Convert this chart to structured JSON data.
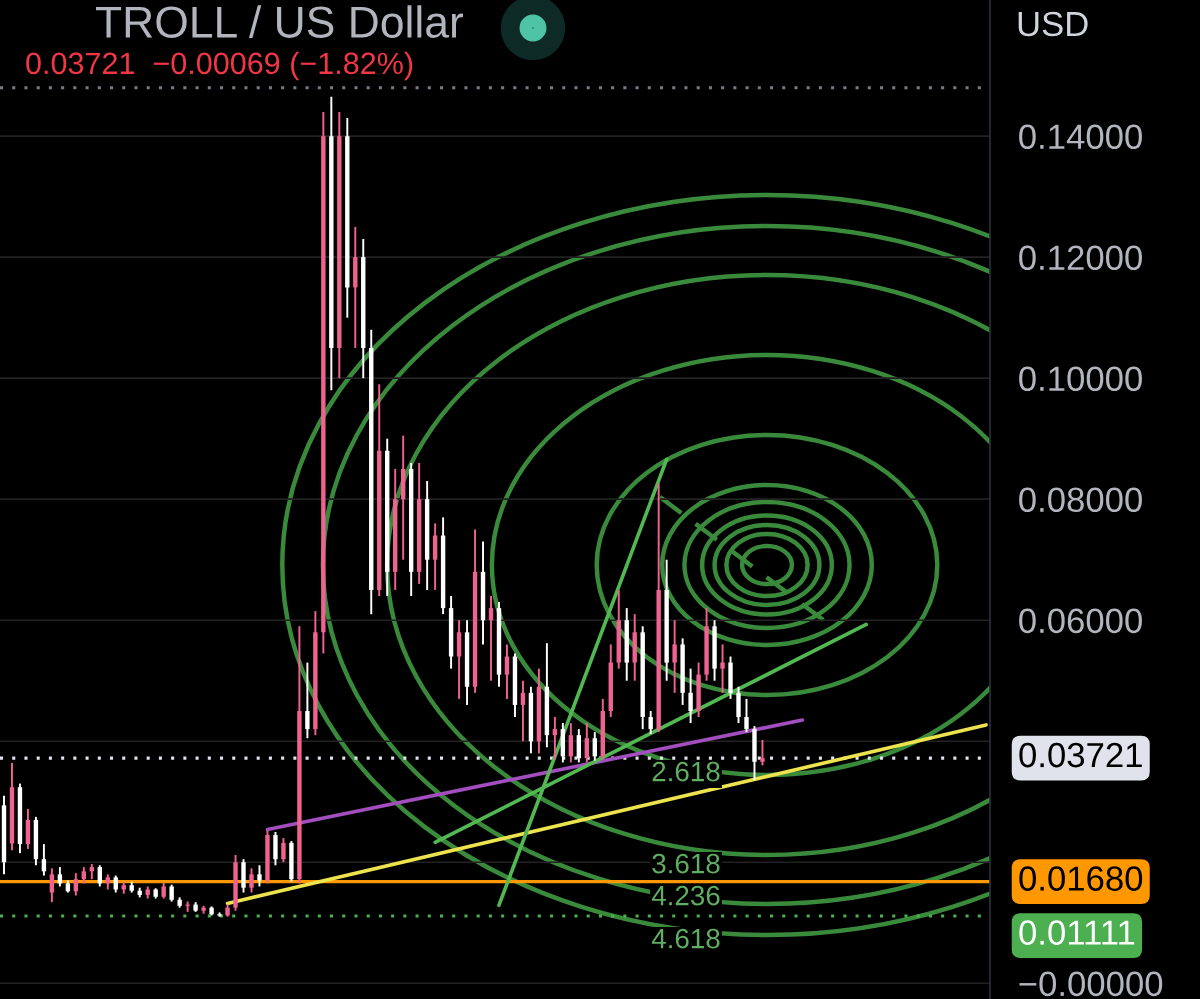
{
  "chart_data": {
    "type": "candlestick",
    "title": "TROLL / US Dollar",
    "subtitle": "0.03721  −0.00069 (−1.82%)",
    "annotations": [
      "USD",
      "2.618",
      "3.618",
      "4.236",
      "4.618"
    ],
    "categories": [
      null,
      null,
      null,
      null,
      null,
      null,
      null,
      null,
      null,
      null,
      null,
      null,
      null,
      null,
      null,
      null,
      null,
      null,
      null,
      null,
      null,
      null,
      null,
      null,
      null,
      null,
      null,
      null,
      null,
      null,
      null,
      null,
      null,
      null,
      null,
      null,
      null,
      null,
      null,
      null,
      null,
      null,
      null,
      null,
      null,
      null,
      null,
      null,
      null,
      null,
      null,
      null,
      null,
      null,
      null,
      null,
      null,
      null,
      null,
      null,
      null,
      null,
      null,
      null,
      null,
      null,
      null,
      null,
      null,
      null,
      null,
      null,
      null,
      null,
      null,
      null,
      null,
      null,
      null,
      null,
      null,
      null,
      null,
      null,
      null,
      null,
      null,
      null,
      null,
      null,
      null,
      null,
      null,
      null,
      null,
      null,
      null,
      null,
      null,
      null,
      null,
      null,
      null,
      null,
      null,
      null,
      null,
      null,
      null,
      null,
      null,
      null,
      null,
      null,
      null,
      null,
      null,
      null,
      null,
      null,
      null,
      null,
      null,
      null
    ],
    "ohlc": [
      [
        0.0294,
        0.031,
        0.018,
        0.02
      ],
      [
        0.0231,
        0.0364,
        0.022,
        0.0324
      ],
      [
        0.0324,
        0.033,
        0.0215,
        0.023
      ],
      [
        0.023,
        0.0288,
        0.0222,
        0.027
      ],
      [
        0.027,
        0.0275,
        0.0195,
        0.0205
      ],
      [
        0.0205,
        0.023,
        0.0178,
        0.0185
      ],
      [
        0.015,
        0.019,
        0.0134,
        0.018
      ],
      [
        0.018,
        0.0192,
        0.016,
        0.0165
      ],
      [
        0.0165,
        0.017,
        0.015,
        0.0152
      ],
      [
        0.0152,
        0.0182,
        0.0145,
        0.0172
      ],
      [
        0.0172,
        0.0192,
        0.0165,
        0.0185
      ],
      [
        0.0185,
        0.0197,
        0.0172,
        0.0192
      ],
      [
        0.0192,
        0.0195,
        0.016,
        0.0165
      ],
      [
        0.0165,
        0.018,
        0.0155,
        0.0175
      ],
      [
        0.0175,
        0.0178,
        0.015,
        0.0155
      ],
      [
        0.0155,
        0.0168,
        0.0148,
        0.0162
      ],
      [
        0.0162,
        0.0168,
        0.015,
        0.0153
      ],
      [
        0.0153,
        0.0158,
        0.0142,
        0.0146
      ],
      [
        0.0146,
        0.016,
        0.014,
        0.0155
      ],
      [
        0.0155,
        0.0157,
        0.014,
        0.0143
      ],
      [
        0.0143,
        0.0166,
        0.014,
        0.016
      ],
      [
        0.016,
        0.0163,
        0.0135,
        0.0138
      ],
      [
        0.0138,
        0.0142,
        0.0125,
        0.0128
      ],
      [
        0.0128,
        0.0135,
        0.0118,
        0.013
      ],
      [
        0.013,
        0.0134,
        0.0118,
        0.012
      ],
      [
        0.012,
        0.0128,
        0.0115,
        0.0125
      ],
      [
        0.0125,
        0.0127,
        0.0112,
        0.0114
      ],
      [
        0.0114,
        0.0117,
        0.011,
        0.0112
      ],
      [
        0.0112,
        0.013,
        0.011,
        0.0125
      ],
      [
        0.0125,
        0.0212,
        0.012,
        0.02
      ],
      [
        0.02,
        0.0205,
        0.015,
        0.0158
      ],
      [
        0.0158,
        0.019,
        0.015,
        0.018
      ],
      [
        0.018,
        0.0195,
        0.016,
        0.017
      ],
      [
        0.017,
        0.0252,
        0.0165,
        0.0245
      ],
      [
        0.0245,
        0.025,
        0.0195,
        0.0205
      ],
      [
        0.0205,
        0.024,
        0.02,
        0.0232
      ],
      [
        0.0232,
        0.0235,
        0.0168,
        0.0172
      ],
      [
        0.0172,
        0.059,
        0.0165,
        0.045
      ],
      [
        0.045,
        0.053,
        0.0405,
        0.042
      ],
      [
        0.042,
        0.0615,
        0.041,
        0.058
      ],
      [
        0.058,
        0.144,
        0.0545,
        0.14
      ],
      [
        0.14,
        0.1465,
        0.098,
        0.105
      ],
      [
        0.105,
        0.144,
        0.1,
        0.14
      ],
      [
        0.14,
        0.143,
        0.11,
        0.115
      ],
      [
        0.115,
        0.125,
        0.105,
        0.12
      ],
      [
        0.12,
        0.123,
        0.1,
        0.105
      ],
      [
        0.105,
        0.108,
        0.061,
        0.065
      ],
      [
        0.065,
        0.099,
        0.064,
        0.088
      ],
      [
        0.088,
        0.09,
        0.064,
        0.068
      ],
      [
        0.068,
        0.085,
        0.065,
        0.08
      ],
      [
        0.08,
        0.0905,
        0.07,
        0.085
      ],
      [
        0.085,
        0.086,
        0.064,
        0.068
      ],
      [
        0.068,
        0.086,
        0.066,
        0.08
      ],
      [
        0.08,
        0.083,
        0.065,
        0.07
      ],
      [
        0.07,
        0.076,
        0.065,
        0.074
      ],
      [
        0.074,
        0.077,
        0.061,
        0.062
      ],
      [
        0.062,
        0.064,
        0.052,
        0.054
      ],
      [
        0.054,
        0.06,
        0.047,
        0.058
      ],
      [
        0.058,
        0.06,
        0.046,
        0.049
      ],
      [
        0.049,
        0.075,
        0.048,
        0.068
      ],
      [
        0.068,
        0.073,
        0.056,
        0.06
      ],
      [
        0.06,
        0.064,
        0.05,
        0.062
      ],
      [
        0.062,
        0.063,
        0.049,
        0.051
      ],
      [
        0.051,
        0.056,
        0.047,
        0.054
      ],
      [
        0.054,
        0.0545,
        0.044,
        0.046
      ],
      [
        0.046,
        0.05,
        0.04,
        0.048
      ],
      [
        0.048,
        0.049,
        0.038,
        0.04
      ],
      [
        0.04,
        0.052,
        0.038,
        0.049
      ],
      [
        0.049,
        0.0562,
        0.039,
        0.041
      ],
      [
        0.041,
        0.044,
        0.037,
        0.042
      ],
      [
        0.042,
        0.043,
        0.0365,
        0.0375
      ],
      [
        0.0375,
        0.043,
        0.0365,
        0.041
      ],
      [
        0.041,
        0.042,
        0.0365,
        0.0372
      ],
      [
        0.0372,
        0.043,
        0.0365,
        0.0405
      ],
      [
        0.0405,
        0.0415,
        0.0368,
        0.0375
      ],
      [
        0.0375,
        0.047,
        0.037,
        0.045
      ],
      [
        0.045,
        0.056,
        0.044,
        0.053
      ],
      [
        0.053,
        0.065,
        0.052,
        0.06
      ],
      [
        0.06,
        0.062,
        0.05,
        0.053
      ],
      [
        0.053,
        0.061,
        0.05,
        0.058
      ],
      [
        0.058,
        0.059,
        0.042,
        0.044
      ],
      [
        0.044,
        0.045,
        0.0412,
        0.042
      ],
      [
        0.042,
        0.0826,
        0.0415,
        0.065
      ],
      [
        0.065,
        0.07,
        0.05,
        0.053
      ],
      [
        0.053,
        0.06,
        0.048,
        0.056
      ],
      [
        0.056,
        0.057,
        0.046,
        0.048
      ],
      [
        0.048,
        0.052,
        0.043,
        0.045
      ],
      [
        0.045,
        0.053,
        0.044,
        0.051
      ],
      [
        0.051,
        0.062,
        0.05,
        0.059
      ],
      [
        0.059,
        0.06,
        0.05,
        0.052
      ],
      [
        0.052,
        0.056,
        0.048,
        0.053
      ],
      [
        0.053,
        0.054,
        0.047,
        0.048
      ],
      [
        0.048,
        0.049,
        0.043,
        0.044
      ],
      [
        0.044,
        0.047,
        0.0415,
        0.042
      ],
      [
        0.042,
        0.0425,
        0.0336,
        0.0366
      ],
      [
        0.0366,
        0.0402,
        0.036,
        0.03721
      ],
      null,
      null,
      null,
      null,
      null,
      null,
      null,
      null,
      null,
      null,
      null,
      null,
      null,
      null,
      null,
      null,
      null,
      null,
      null,
      null,
      null,
      null,
      null,
      null,
      null,
      null,
      null,
      null
    ],
    "colors": [
      "#ffffff",
      "#f06292",
      "#ffffff",
      "#f06292",
      "#ffffff",
      "#ffffff",
      "#f06292",
      "#ffffff",
      "#ffffff",
      "#f06292",
      "#f06292",
      "#f06292",
      "#ffffff",
      "#f06292",
      "#ffffff",
      "#f06292",
      "#ffffff",
      "#ffffff",
      "#f06292",
      "#ffffff",
      "#f06292",
      "#ffffff",
      "#ffffff",
      "#f06292",
      "#ffffff",
      "#f06292",
      "#ffffff",
      "#ffffff",
      "#f06292",
      "#f06292",
      "#ffffff",
      "#f06292",
      "#ffffff",
      "#f06292",
      "#ffffff",
      "#f06292",
      "#ffffff",
      "#f06292",
      "#ffffff",
      "#f06292",
      "#f06292",
      "#ffffff",
      "#f06292",
      "#ffffff",
      "#f06292",
      "#ffffff",
      "#ffffff",
      "#f06292",
      "#ffffff",
      "#f06292",
      "#f06292",
      "#ffffff",
      "#f06292",
      "#ffffff",
      "#f06292",
      "#ffffff",
      "#ffffff",
      "#f06292",
      "#ffffff",
      "#f06292",
      "#ffffff",
      "#f06292",
      "#ffffff",
      "#f06292",
      "#ffffff",
      "#f06292",
      "#ffffff",
      "#f06292",
      "#ffffff",
      "#f06292",
      "#ffffff",
      "#f06292",
      "#ffffff",
      "#f06292",
      "#ffffff",
      "#f06292",
      "#f06292",
      "#f06292",
      "#ffffff",
      "#f06292",
      "#ffffff",
      "#ffffff",
      "#f06292",
      "#ffffff",
      "#f06292",
      "#ffffff",
      "#ffffff",
      "#f06292",
      "#f06292",
      "#ffffff",
      "#f06292",
      "#ffffff",
      "#ffffff",
      "#ffffff",
      "#ffffff",
      "#f06292",
      null,
      null,
      null,
      null,
      null,
      null,
      null,
      null,
      null,
      null,
      null,
      null,
      null,
      null,
      null,
      null,
      null,
      null,
      null,
      null,
      null,
      null,
      null,
      null,
      null,
      null,
      null,
      null
    ],
    "series": [
      {
        "type": "line",
        "color": "#a24ebf",
        "values": [
          null,
          null,
          null,
          null,
          null,
          null,
          null,
          null,
          null,
          null,
          null,
          null,
          null,
          null,
          null,
          null,
          null,
          null,
          null,
          null,
          null,
          null,
          null,
          null,
          null,
          null,
          null,
          null,
          null,
          null,
          null,
          null,
          null,
          0.0254,
          null,
          null,
          null,
          null,
          null,
          null,
          null,
          null,
          null,
          null,
          null,
          null,
          null,
          null,
          null,
          null,
          null,
          null,
          null,
          null,
          null,
          null,
          null,
          null,
          null,
          null,
          null,
          null,
          null,
          null,
          null,
          null,
          null,
          null,
          null,
          null,
          null,
          null,
          null,
          null,
          null,
          null,
          null,
          null,
          null,
          null,
          null,
          null,
          null,
          null,
          null,
          null,
          null,
          null,
          null,
          null,
          null,
          null,
          null,
          null,
          null,
          null,
          null,
          null,
          null,
          null,
          0.0435,
          null,
          null,
          null,
          null,
          null,
          null,
          null,
          null,
          null,
          null,
          null,
          null,
          null,
          null,
          null,
          null,
          null,
          null,
          null,
          null,
          null,
          null,
          null
        ]
      },
      {
        "type": "line",
        "color": "#ece34f",
        "values": [
          null,
          null,
          null,
          null,
          null,
          null,
          null,
          null,
          null,
          null,
          null,
          null,
          null,
          null,
          null,
          null,
          null,
          null,
          null,
          null,
          null,
          null,
          null,
          null,
          null,
          null,
          null,
          null,
          0.0132,
          null,
          null,
          null,
          null,
          null,
          null,
          null,
          null,
          null,
          null,
          null,
          null,
          null,
          null,
          null,
          null,
          null,
          null,
          null,
          null,
          null,
          null,
          null,
          null,
          null,
          null,
          null,
          null,
          null,
          null,
          null,
          null,
          null,
          null,
          null,
          null,
          null,
          null,
          null,
          null,
          null,
          null,
          null,
          null,
          null,
          null,
          null,
          null,
          null,
          null,
          null,
          null,
          null,
          null,
          null,
          null,
          null,
          null,
          null,
          null,
          null,
          null,
          null,
          null,
          null,
          null,
          null,
          null,
          null,
          null,
          null,
          null,
          null,
          null,
          null,
          null,
          null,
          null,
          null,
          null,
          null,
          null,
          null,
          null,
          null,
          null,
          null,
          null,
          null,
          null,
          null,
          null,
          null,
          null,
          0.0427
        ]
      },
      {
        "type": "line",
        "color": "#52b852",
        "values": [
          null,
          null,
          null,
          null,
          null,
          null,
          null,
          null,
          null,
          null,
          null,
          null,
          null,
          null,
          null,
          null,
          null,
          null,
          null,
          null,
          null,
          null,
          null,
          null,
          null,
          null,
          null,
          null,
          null,
          null,
          null,
          null,
          null,
          null,
          null,
          null,
          null,
          null,
          null,
          null,
          null,
          null,
          null,
          null,
          null,
          null,
          null,
          null,
          null,
          null,
          null,
          null,
          null,
          null,
          0.0233,
          null,
          null,
          null,
          null,
          null,
          null,
          null,
          null,
          null,
          null,
          null,
          null,
          null,
          null,
          null,
          null,
          null,
          null,
          null,
          null,
          null,
          null,
          null,
          null,
          null,
          null,
          null,
          null,
          null,
          null,
          null,
          null,
          null,
          null,
          null,
          null,
          null,
          null,
          null,
          null,
          null,
          null,
          null,
          null,
          null,
          null,
          null,
          null,
          null,
          null,
          null,
          null,
          null,
          0.0593,
          null,
          null,
          null,
          null,
          null,
          null,
          null,
          null,
          null,
          null,
          null,
          null,
          null,
          null,
          null
        ]
      },
      {
        "type": "line",
        "color": "#52b852",
        "values": [
          null,
          null,
          null,
          null,
          null,
          null,
          null,
          null,
          null,
          null,
          null,
          null,
          null,
          null,
          null,
          null,
          null,
          null,
          null,
          null,
          null,
          null,
          null,
          null,
          null,
          null,
          null,
          null,
          null,
          null,
          null,
          null,
          null,
          null,
          null,
          null,
          null,
          null,
          null,
          null,
          null,
          null,
          null,
          null,
          null,
          null,
          null,
          null,
          null,
          null,
          null,
          null,
          null,
          null,
          null,
          null,
          null,
          null,
          null,
          null,
          null,
          null,
          0.0129,
          null,
          null,
          null,
          null,
          null,
          null,
          null,
          null,
          null,
          null,
          null,
          null,
          null,
          null,
          null,
          null,
          null,
          null,
          null,
          null,
          0.0866,
          null,
          null,
          null,
          null,
          null,
          null,
          null,
          null,
          null,
          null,
          null,
          null,
          null,
          null,
          null,
          null,
          null,
          null,
          null,
          null,
          null,
          null,
          null,
          null,
          null,
          null,
          null,
          null,
          null,
          null,
          null,
          null,
          null,
          null,
          null,
          null,
          null,
          null,
          null,
          null
        ]
      }
    ],
    "ylim": [
      -0.0026,
      0.1625
    ],
    "yticks": [
      {
        "value": 0,
        "label": "−0.00000"
      },
      {
        "value": 0.02,
        "label": null
      },
      {
        "value": 0.04,
        "label": null
      },
      {
        "value": 0.06,
        "label": "0.06000"
      },
      {
        "value": 0.08,
        "label": "0.08000"
      },
      {
        "value": 0.1,
        "label": "0.10000"
      },
      {
        "value": 0.12,
        "label": "0.12000"
      },
      {
        "value": 0.14,
        "label": "0.14000"
      }
    ],
    "ref_lines": [
      {
        "axis": "y",
        "value": 0.148,
        "color": "#787b86",
        "line_style": "dotted"
      },
      {
        "axis": "y",
        "value": 0.03721,
        "label": "0.03721",
        "color": "#e0e3eb",
        "line_style": "dotted"
      },
      {
        "axis": "y",
        "value": 0.0168,
        "label": "0.01680",
        "color": "#ff9800",
        "line_style": "solid"
      },
      {
        "axis": "y",
        "value": 0.01111,
        "label": "0.01111",
        "color": "#4caf50",
        "line_style": "dotted"
      }
    ],
    "grid": "y",
    "tick_labels": "y"
  }
}
